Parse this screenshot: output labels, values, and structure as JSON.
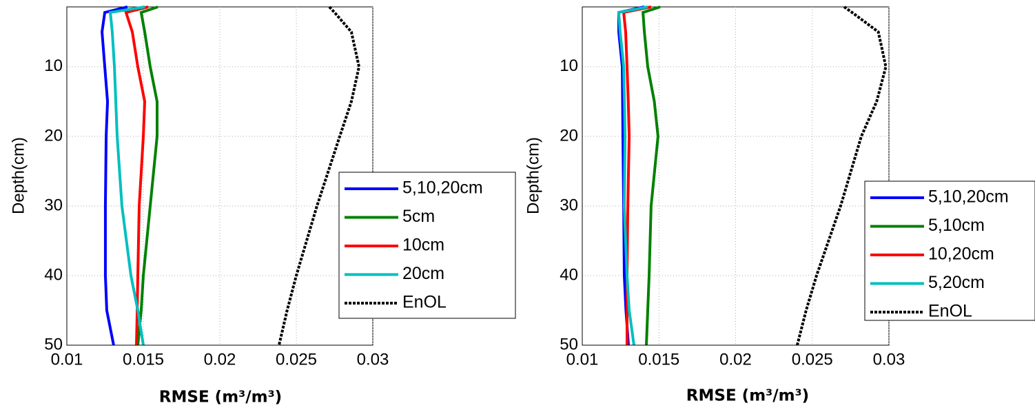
{
  "chart_data": [
    {
      "type": "line",
      "xlabel": "RMSE (m³/m³)",
      "ylabel": "Depth(cm)",
      "y": [
        1.4,
        2.2,
        5,
        10,
        15,
        20,
        30,
        40,
        45,
        50
      ],
      "xlim": [
        0.01,
        0.03
      ],
      "xticks": [
        0.01,
        0.015,
        0.02,
        0.025,
        0.03
      ],
      "ylim": [
        50,
        1.4
      ],
      "yticks": [
        10,
        20,
        30,
        40,
        50
      ],
      "grid": true,
      "legend": "right",
      "series": [
        {
          "name": "5,10,20cm",
          "color": "#0000ff",
          "values": [
            0.01396,
            0.01248,
            0.0123,
            0.01248,
            0.01266,
            0.01257,
            0.01252,
            0.01252,
            0.01261,
            0.01306
          ]
        },
        {
          "name": "5cm",
          "color": "#008000",
          "values": [
            0.01595,
            0.01486,
            0.01509,
            0.01545,
            0.0159,
            0.0159,
            0.01545,
            0.015,
            0.01486,
            0.01464
          ]
        },
        {
          "name": "10cm",
          "color": "#ff0000",
          "values": [
            0.01532,
            0.01387,
            0.01428,
            0.01464,
            0.01509,
            0.015,
            0.01473,
            0.01464,
            0.0146,
            0.01455
          ]
        },
        {
          "name": "20cm",
          "color": "#00bfbf",
          "values": [
            0.0151,
            0.01284,
            0.01297,
            0.01311,
            0.0132,
            0.01329,
            0.0136,
            0.01419,
            0.01464,
            0.015
          ]
        },
        {
          "name": "EnOL",
          "color": "#000000",
          "style": "dashed",
          "values": [
            0.02716,
            0.0275,
            0.0286,
            0.0291,
            0.0286,
            0.02784,
            0.02635,
            0.025,
            0.0244,
            0.02387
          ]
        }
      ]
    },
    {
      "type": "line",
      "xlabel": "RMSE (m³/m³)",
      "ylabel": "Depth(cm)",
      "y": [
        1.4,
        2.2,
        5,
        10,
        15,
        20,
        30,
        40,
        45,
        50
      ],
      "xlim": [
        0.01,
        0.03
      ],
      "xticks": [
        0.01,
        0.015,
        0.02,
        0.025,
        0.03
      ],
      "ylim": [
        50,
        1.4
      ],
      "yticks": [
        10,
        20,
        30,
        40,
        50
      ],
      "grid": true,
      "legend": "right",
      "series": [
        {
          "name": "5,10,20cm",
          "color": "#0000ff",
          "values": [
            0.01404,
            0.01238,
            0.01238,
            0.01261,
            0.01263,
            0.01265,
            0.0127,
            0.01274,
            0.01285,
            0.01301
          ]
        },
        {
          "name": "5,10cm",
          "color": "#008000",
          "values": [
            0.01508,
            0.01396,
            0.01405,
            0.01427,
            0.0147,
            0.01494,
            0.01449,
            0.01436,
            0.01427,
            0.01418
          ]
        },
        {
          "name": "10,20cm",
          "color": "#ff0000",
          "values": [
            0.01449,
            0.0127,
            0.01283,
            0.01292,
            0.013,
            0.01306,
            0.01297,
            0.01292,
            0.01292,
            0.01292
          ]
        },
        {
          "name": "5,20cm",
          "color": "#00bfbf",
          "values": [
            0.01427,
            0.01238,
            0.01247,
            0.0127,
            0.01275,
            0.01279,
            0.01274,
            0.01292,
            0.01306,
            0.01337
          ]
        },
        {
          "name": "EnOL",
          "color": "#000000",
          "style": "dashed",
          "values": [
            0.02708,
            0.0276,
            0.02931,
            0.0298,
            0.0292,
            0.0282,
            0.02685,
            0.02528,
            0.0246,
            0.02402
          ]
        }
      ]
    }
  ]
}
